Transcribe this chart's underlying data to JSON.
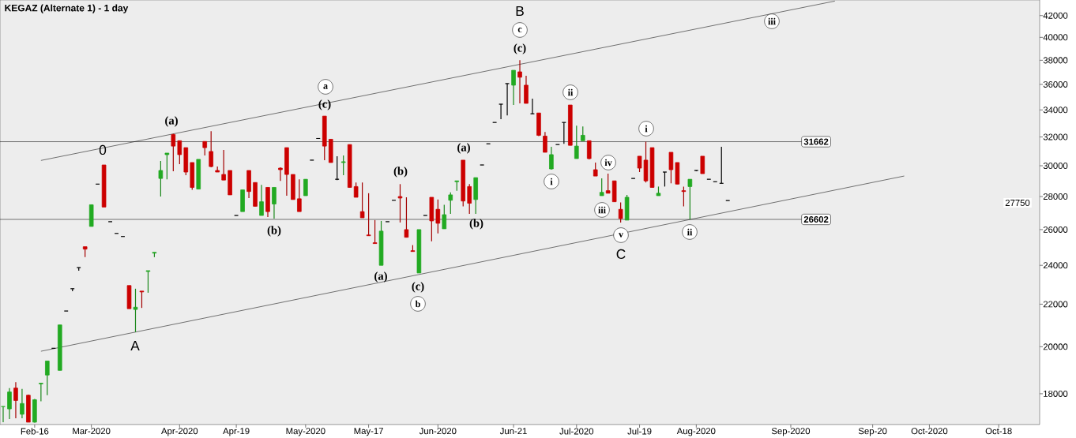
{
  "chart_data": {
    "type": "candlestick",
    "title": "KEGAZ (Alternate 1) - 1 day",
    "log": true,
    "categories": [
      null,
      null,
      null,
      null,
      null,
      "Feb-16",
      null,
      null,
      null,
      null,
      null,
      null,
      null,
      null,
      "Mar-2020",
      null,
      null,
      null,
      null,
      null,
      null,
      null,
      null,
      null,
      null,
      null,
      null,
      null,
      "Apr-2020",
      null,
      null,
      null,
      null,
      null,
      null,
      null,
      null,
      "Apr-19",
      null,
      null,
      null,
      null,
      null,
      null,
      null,
      null,
      null,
      null,
      "May-2020",
      null,
      null,
      null,
      null,
      null,
      null,
      null,
      null,
      null,
      "May-17",
      null,
      null,
      null,
      null,
      null,
      null,
      null,
      null,
      null,
      null,
      "Jun-2020",
      null,
      null,
      null,
      null,
      null,
      null,
      null,
      null,
      null,
      null,
      null,
      "Jun-21",
      null,
      null,
      null,
      null,
      null,
      null,
      null,
      null,
      null,
      "Jul-2020",
      null,
      null,
      null,
      null,
      null,
      null,
      null,
      null,
      null,
      "Jul-19",
      null,
      null,
      null,
      null,
      null,
      null,
      null,
      null,
      "Aug-2020",
      null,
      null,
      null,
      null,
      null,
      null,
      null,
      null,
      null,
      null,
      null,
      null,
      null,
      null,
      "Sep-2020",
      null,
      null,
      null,
      null,
      null,
      null,
      null,
      null,
      null,
      null,
      null,
      null,
      "Sep-20",
      null,
      null,
      null,
      null,
      null,
      null,
      null,
      null,
      "Oct-2020",
      null,
      null,
      null,
      null,
      null,
      null,
      null,
      null,
      null,
      null,
      "Oct-18",
      null,
      null,
      null,
      null,
      null,
      null
    ],
    "ohlc": [
      [
        17490,
        17490,
        16890,
        17490
      ],
      [
        17400,
        18230,
        17010,
        18070
      ],
      [
        18230,
        18470,
        17040,
        17730
      ],
      [
        17190,
        18200,
        17040,
        17610
      ],
      [
        17940,
        17970,
        16890,
        16890
      ],
      [
        16890,
        17790,
        16870,
        17760
      ],
      [
        18400,
        18430,
        17700,
        18430
      ],
      [
        18770,
        19370,
        17940,
        19370
      ],
      [
        19930,
        19930,
        19930,
        19930
      ],
      [
        18970,
        21000,
        18970,
        21000
      ],
      [
        21665,
        21665,
        21665,
        21665
      ],
      [
        22775,
        22775,
        22650,
        22775
      ],
      [
        23877,
        23877,
        23714,
        23877
      ],
      [
        25021,
        25021,
        24444,
        24888
      ],
      [
        26186,
        27488,
        26186,
        27488
      ],
      [
        28789,
        28789,
        28789,
        28789
      ],
      [
        30054,
        30054,
        27349,
        27349
      ],
      [
        26465,
        26465,
        26465,
        26465
      ],
      [
        25778,
        25778,
        25778,
        25778
      ],
      [
        25600,
        25600,
        25600,
        25600
      ],
      [
        22938,
        22938,
        21778,
        21778
      ],
      [
        21741,
        22775,
        20666,
        21852
      ],
      [
        22653,
        22653,
        21815,
        22612
      ],
      [
        23673,
        23714,
        22571,
        23714
      ],
      [
        24666,
        24710,
        24444,
        24710
      ],
      [
        29158,
        30325,
        28000,
        29684
      ],
      [
        30757,
        30866,
        29105,
        30866
      ],
      [
        32176,
        32235,
        29632,
        31351
      ],
      [
        31730,
        31730,
        30108,
        30757
      ],
      [
        31243,
        31243,
        29368,
        29579
      ],
      [
        30216,
        30216,
        28421,
        28579
      ],
      [
        28474,
        30433,
        28474,
        30433
      ],
      [
        31676,
        31676,
        30703,
        31243
      ],
      [
        30974,
        32412,
        29895,
        29947
      ],
      [
        29684,
        29947,
        29579,
        29579
      ],
      [
        29421,
        31081,
        29053,
        29053
      ],
      [
        29684,
        29684,
        28105,
        28105
      ],
      [
        26837,
        26837,
        26837,
        26837
      ],
      [
        27070,
        28421,
        27070,
        28421
      ],
      [
        29684,
        29684,
        27907,
        28316
      ],
      [
        28895,
        28895,
        27395,
        27395
      ],
      [
        26837,
        28737,
        26837,
        27674
      ],
      [
        28579,
        28579,
        26744,
        27070
      ],
      [
        27535,
        28579,
        26651,
        28579
      ],
      [
        29842,
        29895,
        29000,
        29737
      ],
      [
        31243,
        31243,
        28053,
        29421
      ],
      [
        29421,
        29421,
        27814,
        27814
      ],
      [
        27860,
        29105,
        27070,
        27070
      ],
      [
        28053,
        29105,
        28053,
        29105
      ],
      [
        30379,
        30379,
        30379,
        30379
      ],
      [
        31892,
        31892,
        31892,
        31892
      ],
      [
        33529,
        33529,
        30379,
        31351
      ],
      [
        31838,
        31838,
        30216,
        30216
      ],
      [
        29105,
        30649,
        29053,
        29105
      ],
      [
        30216,
        30703,
        29368,
        30270
      ],
      [
        31459,
        31459,
        28579,
        28579
      ],
      [
        28632,
        28895,
        27953,
        27953
      ],
      [
        27070,
        28895,
        26698,
        26698
      ],
      [
        25689,
        28210,
        25644,
        25644
      ],
      [
        25245,
        26558,
        25200,
        25200
      ],
      [
        24000,
        26511,
        24000,
        25911
      ],
      [
        26465,
        26465,
        26465,
        26465
      ],
      [
        27767,
        27767,
        27767,
        27767
      ],
      [
        28000,
        28789,
        26418,
        27907
      ],
      [
        26000,
        27953,
        25556,
        25556
      ],
      [
        24799,
        25111,
        24755,
        24755
      ],
      [
        23592,
        26000,
        23592,
        26000
      ],
      [
        26837,
        26837,
        26837,
        26837
      ],
      [
        27953,
        27953,
        25333,
        26511
      ],
      [
        27209,
        27814,
        25778,
        26372
      ],
      [
        26047,
        27488,
        26047,
        26884
      ],
      [
        27767,
        28263,
        26930,
        28105
      ],
      [
        28947,
        29000,
        28368,
        29000
      ],
      [
        30379,
        30379,
        27395,
        27721
      ],
      [
        28632,
        28789,
        26930,
        27581
      ],
      [
        27814,
        29211,
        26930,
        29211
      ],
      [
        30054,
        30054,
        30054,
        30054
      ],
      [
        31513,
        31513,
        31513,
        31513
      ],
      [
        33058,
        33058,
        33058,
        33058
      ],
      [
        34438,
        34438,
        33294,
        34438
      ],
      [
        36065,
        36065,
        33588,
        36065
      ],
      [
        35938,
        37161,
        34375,
        37161
      ],
      [
        37032,
        38000,
        34500,
        36581
      ],
      [
        35938,
        36710,
        34500,
        34500
      ],
      [
        33706,
        34875,
        33706,
        33706
      ],
      [
        33765,
        33765,
        32059,
        32118
      ],
      [
        32059,
        32353,
        30919,
        30919
      ],
      [
        29789,
        31297,
        29737,
        30757
      ],
      [
        31459,
        31459,
        31459,
        31459
      ],
      [
        33058,
        33058,
        31513,
        33058
      ],
      [
        34375,
        34375,
        31405,
        31405
      ],
      [
        30487,
        32823,
        30487,
        31351
      ],
      [
        31730,
        32765,
        31730,
        32118
      ],
      [
        31730,
        31730,
        30433,
        30487
      ],
      [
        29737,
        30216,
        29316,
        29316
      ],
      [
        28053,
        29158,
        28053,
        28263
      ],
      [
        28368,
        29474,
        28210,
        28210
      ],
      [
        29000,
        29000,
        27674,
        27674
      ],
      [
        27209,
        27628,
        26418,
        26651
      ],
      [
        26558,
        28105,
        26558,
        27953
      ],
      [
        29158,
        29158,
        29158,
        29158
      ],
      [
        30649,
        30649,
        29579,
        29842
      ],
      [
        30379,
        31662,
        28895,
        29000
      ],
      [
        31243,
        31243,
        28579,
        28579
      ],
      [
        28053,
        28632,
        28053,
        28210
      ],
      [
        29579,
        29579,
        28632,
        29579
      ],
      [
        30919,
        30919,
        28842,
        29737
      ],
      [
        30216,
        30216,
        28789,
        28789
      ],
      [
        28368,
        28632,
        27395,
        28316
      ],
      [
        28632,
        29105,
        26602,
        29105
      ],
      [
        29684,
        29684,
        29632,
        29684
      ],
      [
        30649,
        30649,
        29474,
        29474
      ],
      [
        29105,
        29105,
        29105,
        29105
      ],
      [
        28947,
        28947,
        28947,
        28947
      ],
      [
        28842,
        31297,
        28842,
        28842
      ],
      [
        27750,
        27750,
        27750,
        27750
      ],
      null,
      null,
      null,
      null,
      null,
      null,
      null,
      null,
      null,
      null,
      null,
      null,
      null,
      null,
      null,
      null,
      null,
      null,
      null,
      null,
      null,
      null,
      null,
      null,
      null,
      null,
      null,
      null,
      null,
      null,
      null,
      null,
      null,
      null,
      null,
      null,
      null,
      null,
      null,
      null,
      null,
      null,
      null,
      null,
      null,
      null,
      null,
      null,
      null
    ],
    "colors": [
      "#22aa22",
      "#22aa22",
      "#cc0000",
      "#22aa22",
      "#cc0000",
      "#22aa22",
      "#22aa22",
      "#22aa22",
      "#000000",
      "#22aa22",
      "#000000",
      "#000000",
      "#000000",
      "#cc0000",
      "#22aa22",
      "#000000",
      "#cc0000",
      "#000000",
      "#000000",
      "#000000",
      "#cc0000",
      "#22aa22",
      "#cc0000",
      "#22aa22",
      "#22aa22",
      "#22aa22",
      "#22aa22",
      "#cc0000",
      "#cc0000",
      "#cc0000",
      "#cc0000",
      "#22aa22",
      "#cc0000",
      "#cc0000",
      "#cc0000",
      "#cc0000",
      "#cc0000",
      "#000000",
      "#22aa22",
      "#cc0000",
      "#cc0000",
      "#22aa22",
      "#cc0000",
      "#22aa22",
      "#cc0000",
      "#cc0000",
      "#cc0000",
      "#cc0000",
      "#22aa22",
      "#000000",
      "#000000",
      "#cc0000",
      "#cc0000",
      "#000000",
      "#22aa22",
      "#cc0000",
      "#cc0000",
      "#cc0000",
      "#cc0000",
      "#cc0000",
      "#22aa22",
      "#000000",
      "#000000",
      "#cc0000",
      "#cc0000",
      "#cc0000",
      "#22aa22",
      "#000000",
      "#cc0000",
      "#cc0000",
      "#22aa22",
      "#22aa22",
      "#22aa22",
      "#cc0000",
      "#cc0000",
      "#22aa22",
      "#000000",
      "#000000",
      "#000000",
      "#000000",
      "#000000",
      "#22aa22",
      "#cc0000",
      "#cc0000",
      "#000000",
      "#cc0000",
      "#cc0000",
      "#22aa22",
      "#000000",
      "#000000",
      "#cc0000",
      "#22aa22",
      "#22aa22",
      "#cc0000",
      "#cc0000",
      "#22aa22",
      "#cc0000",
      "#cc0000",
      "#cc0000",
      "#22aa22",
      "#000000",
      "#cc0000",
      "#cc0000",
      "#cc0000",
      "#22aa22",
      "#000000",
      "#cc0000",
      "#cc0000",
      "#cc0000",
      "#22aa22",
      "#000000",
      "#cc0000",
      "#000000",
      "#000000",
      "#000000",
      "#000000",
      null,
      null,
      null,
      null,
      null,
      null,
      null,
      null,
      null,
      null,
      null,
      null,
      null,
      null,
      null,
      null,
      null,
      null,
      null,
      null,
      null,
      null,
      null,
      null,
      null,
      null,
      null,
      null,
      null,
      null,
      null,
      null,
      null,
      null,
      null,
      null,
      null,
      null,
      null,
      null,
      null,
      null,
      null,
      null,
      null,
      null,
      null,
      null,
      null
    ],
    "series": [
      {
        "type": "line",
        "color": "#000000",
        "values": [
          null,
          null,
          null,
          null,
          null,
          null,
          30359,
          null,
          null,
          null,
          null,
          null,
          null,
          null,
          null,
          null,
          null,
          null,
          null,
          null,
          null,
          null,
          null,
          null,
          null,
          null,
          null,
          null,
          null,
          null,
          null,
          null,
          null,
          null,
          null,
          null,
          null,
          null,
          null,
          null,
          null,
          null,
          null,
          null,
          null,
          null,
          null,
          null,
          null,
          null,
          null,
          null,
          null,
          null,
          null,
          null,
          null,
          null,
          null,
          null,
          null,
          null,
          null,
          null,
          null,
          null,
          null,
          null,
          null,
          null,
          null,
          null,
          null,
          null,
          null,
          null,
          null,
          null,
          null,
          null,
          null,
          null,
          null,
          null,
          null,
          null,
          null,
          null,
          null,
          null,
          null,
          null,
          null,
          null,
          null,
          null,
          null,
          null,
          null,
          null,
          null,
          null,
          null,
          null,
          null,
          null,
          null,
          null,
          null,
          null,
          null,
          null,
          null,
          null,
          null,
          null,
          null,
          null,
          null,
          null,
          null,
          null,
          null,
          null,
          null,
          null,
          null,
          null,
          null,
          null,
          null,
          null,
          43388,
          null,
          null,
          null,
          null,
          null,
          null,
          null,
          null,
          null,
          null,
          null,
          null,
          null,
          null,
          null,
          null,
          null,
          null,
          null,
          null,
          null,
          null,
          null,
          null,
          null,
          null,
          null,
          null,
          null,
          null,
          null,
          null
        ]
      },
      {
        "type": "line",
        "color": "#000000",
        "values": [
          null,
          null,
          null,
          null,
          null,
          null,
          19801,
          null,
          null,
          null,
          null,
          null,
          null,
          null,
          null,
          null,
          null,
          null,
          null,
          null,
          null,
          null,
          null,
          null,
          null,
          null,
          null,
          null,
          null,
          null,
          null,
          null,
          null,
          null,
          null,
          null,
          null,
          null,
          null,
          null,
          null,
          null,
          null,
          null,
          null,
          null,
          null,
          null,
          null,
          null,
          null,
          null,
          null,
          null,
          null,
          null,
          null,
          null,
          null,
          null,
          null,
          null,
          null,
          null,
          null,
          null,
          null,
          null,
          null,
          null,
          null,
          null,
          null,
          null,
          null,
          null,
          null,
          null,
          null,
          null,
          null,
          null,
          null,
          null,
          null,
          null,
          null,
          null,
          null,
          null,
          null,
          null,
          null,
          null,
          null,
          null,
          null,
          null,
          null,
          null,
          null,
          null,
          null,
          null,
          null,
          null,
          null,
          null,
          null,
          null,
          null,
          null,
          null,
          null,
          null,
          null,
          null,
          null,
          null,
          null,
          null,
          null,
          null,
          null,
          null,
          null,
          null,
          null,
          null,
          null,
          null,
          null,
          null,
          null,
          null,
          null,
          null,
          null,
          null,
          null,
          null,
          null,
          null,
          29318,
          null,
          null,
          null,
          null,
          null,
          null,
          null,
          null,
          null,
          null,
          null,
          null,
          null,
          null,
          null,
          null,
          null,
          null,
          null,
          null,
          null
        ]
      }
    ],
    "ylim": [
      16800,
      43500
    ],
    "yticks": [
      18000,
      20000,
      22000,
      24000,
      26000,
      28000,
      30000,
      32000,
      34000,
      36000,
      38000,
      40000,
      42000
    ],
    "ref_lines": [
      {
        "axis": "y",
        "value": 31662,
        "label": "31662"
      },
      {
        "axis": "y",
        "value": 26602,
        "label": "26602"
      }
    ],
    "annotations": [
      "0",
      "A",
      "B",
      "C",
      "(a)",
      "(b)",
      "a",
      "(c)",
      "(b)",
      "(a)",
      "(c)",
      "b",
      "(a)",
      "(b)",
      "c",
      "(c)",
      "ii",
      "i",
      "iv",
      "iii",
      "v",
      "i",
      "ii",
      "iii",
      "27750"
    ]
  }
}
